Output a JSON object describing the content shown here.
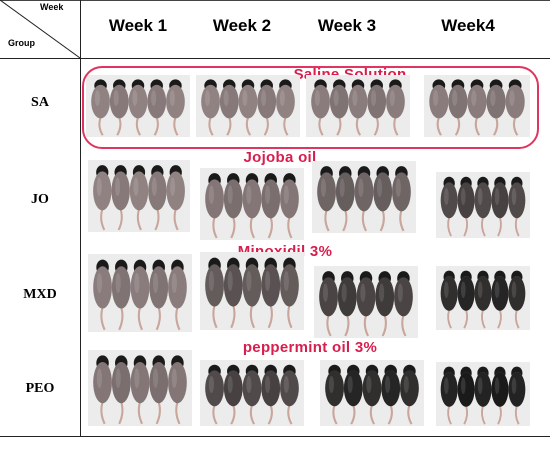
{
  "header": {
    "week_corner": "Week",
    "group_corner": "Group",
    "weeks": [
      "Week 1",
      "Week 2",
      "Week 3",
      "Week4"
    ]
  },
  "groups": [
    {
      "label": "SA",
      "treatment": "Saline Solution",
      "coat": [
        0.1,
        0.1,
        0.15,
        0.15
      ],
      "highlighted": true
    },
    {
      "label": "JO",
      "treatment": "Jojoba oil",
      "coat": [
        0.1,
        0.2,
        0.35,
        0.6
      ]
    },
    {
      "label": "MXD",
      "treatment": "Minoxidil 3%",
      "coat": [
        0.15,
        0.45,
        0.65,
        0.85
      ]
    },
    {
      "label": "PEO",
      "treatment": "peppermint oil 3%",
      "coat": [
        0.2,
        0.6,
        0.85,
        0.95
      ]
    }
  ],
  "colors": {
    "treatment_text": "#d81e4d",
    "highlight_border": "#e0355f",
    "shaved_skin": "#9a8a8a",
    "fur": "#1a1a1a",
    "tail": "#c9a59a"
  }
}
